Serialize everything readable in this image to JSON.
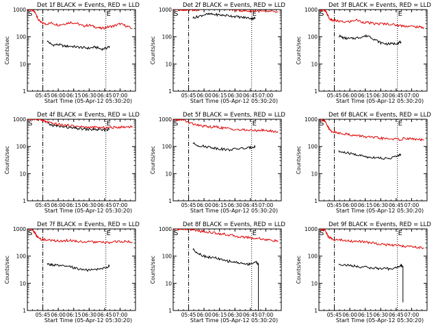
{
  "chart_data": [
    {
      "type": "line",
      "title": "Det 1f BLACK = Events, RED = LLD",
      "xlabel": "Start Time (05-Apr-12 05:30:20)",
      "ylabel": "Counts/sec",
      "yscale": "log",
      "ylim": [
        1,
        1000
      ],
      "yticks": [
        "1",
        "10",
        "100",
        "1000"
      ],
      "xlim": [
        5.5,
        7.25
      ],
      "xticks": [
        "05:45",
        "06:00",
        "06:15",
        "06:30",
        "06:45",
        "07:00"
      ],
      "markers": {
        "start": "S",
        "end": "E",
        "dashdot_x": 5.75,
        "dotted_x": 6.77
      },
      "legend": "none",
      "grid": false,
      "series": [
        {
          "color": "#e00000",
          "x": [
            5.51,
            5.56,
            5.6,
            5.64,
            5.67,
            5.72,
            5.8,
            5.9,
            6.0,
            6.1,
            6.2,
            6.3,
            6.4,
            6.5,
            6.6,
            6.7,
            6.8,
            6.9,
            7.0,
            7.1,
            7.2
          ],
          "y": [
            1000,
            1000,
            900,
            700,
            450,
            330,
            300,
            320,
            270,
            300,
            340,
            310,
            250,
            270,
            230,
            200,
            230,
            250,
            300,
            250,
            200
          ]
        },
        {
          "color": "#000000",
          "x": [
            5.82,
            5.9,
            6.0,
            6.1,
            6.2,
            6.3,
            6.4,
            6.5,
            6.6,
            6.7,
            6.78,
            6.83
          ],
          "y": [
            70,
            50,
            52,
            45,
            45,
            42,
            40,
            38,
            42,
            35,
            38,
            45
          ]
        }
      ]
    },
    {
      "type": "line",
      "title": "Det 2f BLACK = Events, RED = LLD",
      "xlabel": "Start Time (05-Apr-12 05:30:20)",
      "ylabel": "Counts/sec",
      "yscale": "log",
      "ylim": [
        1,
        1000
      ],
      "yticks": [
        "1",
        "10",
        "100",
        "1000"
      ],
      "xlim": [
        5.5,
        7.25
      ],
      "xticks": [
        "05:45",
        "06:00",
        "06:15",
        "06:30",
        "06:45",
        "07:00"
      ],
      "markers": {
        "start": "S",
        "end": "E",
        "dashdot_x": 5.75,
        "dotted_x": 6.77
      },
      "legend": "none",
      "grid": false,
      "series": [
        {
          "color": "#e00000",
          "x": [
            5.51,
            5.6,
            5.66,
            5.7,
            5.75,
            5.85,
            5.95,
            6.05,
            6.15,
            6.25,
            6.35,
            6.45,
            6.55,
            6.65,
            6.75,
            6.85,
            6.95,
            7.05,
            7.2
          ],
          "y": [
            1000,
            1000,
            1000,
            1000,
            1000,
            950,
            1050,
            1100,
            1150,
            1200,
            1100,
            1000,
            950,
            900,
            880,
            900,
            850,
            850,
            800
          ]
        },
        {
          "color": "#000000",
          "x": [
            5.82,
            5.9,
            6.0,
            6.1,
            6.2,
            6.3,
            6.4,
            6.5,
            6.6,
            6.7,
            6.78,
            6.83
          ],
          "y": [
            500,
            550,
            650,
            680,
            650,
            620,
            600,
            560,
            520,
            500,
            470,
            500
          ]
        }
      ]
    },
    {
      "type": "line",
      "title": "Det 3f BLACK = Events, RED = LLD",
      "xlabel": "Start Time (05-Apr-12 05:30:20)",
      "ylabel": "Counts/sec",
      "yscale": "log",
      "ylim": [
        1,
        1000
      ],
      "yticks": [
        "1",
        "10",
        "100",
        "1000"
      ],
      "xlim": [
        5.5,
        7.25
      ],
      "xticks": [
        "05:45",
        "06:00",
        "06:15",
        "06:30",
        "06:45",
        "07:00"
      ],
      "markers": {
        "start": "S",
        "end": "E",
        "dashdot_x": 5.75,
        "dotted_x": 6.77
      },
      "legend": "none",
      "grid": false,
      "series": [
        {
          "color": "#e00000",
          "x": [
            5.51,
            5.56,
            5.6,
            5.64,
            5.67,
            5.72,
            5.8,
            5.9,
            6.0,
            6.1,
            6.2,
            6.3,
            6.4,
            6.5,
            6.6,
            6.7,
            6.8,
            6.9,
            7.0,
            7.1,
            7.2
          ],
          "y": [
            1000,
            1000,
            900,
            650,
            450,
            400,
            380,
            350,
            360,
            420,
            350,
            330,
            300,
            300,
            300,
            280,
            260,
            250,
            240,
            230,
            220
          ]
        },
        {
          "color": "#000000",
          "x": [
            5.82,
            5.9,
            6.0,
            6.1,
            6.2,
            6.3,
            6.4,
            6.5,
            6.6,
            6.7,
            6.78,
            6.83
          ],
          "y": [
            110,
            90,
            85,
            90,
            100,
            110,
            80,
            60,
            55,
            55,
            60,
            65
          ]
        }
      ]
    },
    {
      "type": "line",
      "title": "Det 4f BLACK = Events, RED = LLD",
      "xlabel": "Start Time (05-Apr-12 05:30:20)",
      "ylabel": "Counts/sec",
      "yscale": "log",
      "ylim": [
        1,
        1000
      ],
      "yticks": [
        "1",
        "10",
        "100",
        "1000"
      ],
      "xlim": [
        5.5,
        7.25
      ],
      "xticks": [
        "05:45",
        "06:00",
        "06:15",
        "06:30",
        "06:45",
        "07:00"
      ],
      "markers": {
        "start": "S",
        "end": "E",
        "dashdot_x": 5.75,
        "dotted_x": 6.77
      },
      "legend": "none",
      "grid": false,
      "series": [
        {
          "color": "#e00000",
          "x": [
            5.51,
            5.6,
            5.65,
            5.7,
            5.75,
            5.8,
            5.9,
            6.0,
            6.1,
            6.2,
            6.3,
            6.4,
            6.5,
            6.6,
            6.7,
            6.8,
            6.9,
            7.0,
            7.1,
            7.2
          ],
          "y": [
            1000,
            1000,
            1000,
            1000,
            900,
            800,
            700,
            650,
            600,
            580,
            550,
            520,
            500,
            500,
            480,
            500,
            500,
            520,
            520,
            550
          ]
        },
        {
          "color": "#000000",
          "x": [
            5.82,
            5.9,
            6.0,
            6.1,
            6.2,
            6.3,
            6.4,
            6.5,
            6.6,
            6.7,
            6.78,
            6.83
          ],
          "y": [
            700,
            600,
            550,
            520,
            480,
            460,
            440,
            420,
            420,
            400,
            410,
            430
          ]
        }
      ]
    },
    {
      "type": "line",
      "title": "Det 5f BLACK = Events, RED = LLD",
      "xlabel": "Start Time (05-Apr-12 05:30:20)",
      "ylabel": "Counts/sec",
      "yscale": "log",
      "ylim": [
        1,
        1000
      ],
      "yticks": [
        "1",
        "10",
        "100",
        "1000"
      ],
      "xlim": [
        5.5,
        7.25
      ],
      "xticks": [
        "05:45",
        "06:00",
        "06:15",
        "06:30",
        "06:45",
        "07:00"
      ],
      "markers": {
        "start": "S",
        "end": "E",
        "dashdot_x": 5.75,
        "dotted_x": 6.77
      },
      "legend": "none",
      "grid": false,
      "series": [
        {
          "color": "#e00000",
          "x": [
            5.51,
            5.56,
            5.6,
            5.64,
            5.67,
            5.72,
            5.8,
            5.9,
            6.0,
            6.1,
            6.2,
            6.3,
            6.4,
            6.5,
            6.6,
            6.7,
            6.8,
            6.9,
            7.0,
            7.1,
            7.2
          ],
          "y": [
            1000,
            1000,
            1000,
            1000,
            1000,
            800,
            700,
            600,
            550,
            520,
            520,
            480,
            450,
            430,
            400,
            400,
            380,
            400,
            380,
            370,
            330
          ]
        },
        {
          "color": "#000000",
          "x": [
            5.82,
            5.9,
            6.0,
            6.1,
            6.2,
            6.3,
            6.4,
            6.5,
            6.6,
            6.7,
            6.78,
            6.83
          ],
          "y": [
            130,
            110,
            100,
            95,
            85,
            80,
            75,
            80,
            85,
            85,
            95,
            100
          ]
        }
      ]
    },
    {
      "type": "line",
      "title": "Det 6f BLACK = Events, RED = LLD",
      "xlabel": "Start Time (05-Apr-12 05:30:20)",
      "ylabel": "Counts/sec",
      "yscale": "log",
      "ylim": [
        1,
        1000
      ],
      "yticks": [
        "1",
        "10",
        "100",
        "1000"
      ],
      "xlim": [
        5.5,
        7.25
      ],
      "xticks": [
        "05:45",
        "06:00",
        "06:15",
        "06:30",
        "06:45",
        "07:00"
      ],
      "markers": {
        "start": "S",
        "end": "E",
        "dashdot_x": 5.75,
        "dotted_x": 6.77
      },
      "legend": "none",
      "grid": false,
      "series": [
        {
          "color": "#e00000",
          "x": [
            5.51,
            5.56,
            5.6,
            5.64,
            5.67,
            5.72,
            5.8,
            5.9,
            6.0,
            6.1,
            6.2,
            6.3,
            6.4,
            6.5,
            6.6,
            6.7,
            6.8,
            6.9,
            7.0,
            7.1,
            7.2
          ],
          "y": [
            1000,
            1000,
            800,
            550,
            420,
            350,
            320,
            300,
            270,
            250,
            240,
            220,
            210,
            200,
            190,
            190,
            180,
            200,
            190,
            180,
            170
          ]
        },
        {
          "color": "#000000",
          "x": [
            5.82,
            5.9,
            6.0,
            6.1,
            6.2,
            6.3,
            6.4,
            6.5,
            6.6,
            6.7,
            6.78,
            6.83
          ],
          "y": [
            65,
            60,
            55,
            50,
            45,
            40,
            40,
            38,
            35,
            40,
            45,
            50
          ]
        }
      ]
    },
    {
      "type": "line",
      "title": "Det 7f BLACK = Events, RED = LLD",
      "xlabel": "Start Time (05-Apr-12 05:30:20)",
      "ylabel": "Counts/sec",
      "yscale": "log",
      "ylim": [
        1,
        1000
      ],
      "yticks": [
        "1",
        "10",
        "100",
        "1000"
      ],
      "xlim": [
        5.5,
        7.25
      ],
      "xticks": [
        "05:45",
        "06:00",
        "06:15",
        "06:30",
        "06:45",
        "07:00"
      ],
      "markers": {
        "start": "S",
        "end": "E",
        "dashdot_x": 5.75,
        "dotted_x": 6.77
      },
      "legend": "none",
      "grid": false,
      "series": [
        {
          "color": "#e00000",
          "x": [
            5.51,
            5.56,
            5.6,
            5.64,
            5.67,
            5.72,
            5.8,
            5.9,
            6.0,
            6.1,
            6.2,
            6.3,
            6.4,
            6.5,
            6.6,
            6.7,
            6.8,
            6.9,
            7.0,
            7.1,
            7.2
          ],
          "y": [
            1000,
            1000,
            850,
            600,
            480,
            420,
            400,
            380,
            360,
            370,
            380,
            350,
            340,
            330,
            330,
            320,
            310,
            330,
            350,
            340,
            330
          ]
        },
        {
          "color": "#000000",
          "x": [
            5.82,
            5.9,
            6.0,
            6.1,
            6.2,
            6.3,
            6.4,
            6.5,
            6.6,
            6.7,
            6.78,
            6.83
          ],
          "y": [
            50,
            48,
            45,
            42,
            40,
            35,
            32,
            30,
            32,
            35,
            38,
            45
          ]
        }
      ]
    },
    {
      "type": "line",
      "title": "Det 8f BLACK = Events, RED = LLD",
      "xlabel": "Start Time (05-Apr-12 05:30:20)",
      "ylabel": "Counts/sec",
      "yscale": "log",
      "ylim": [
        1,
        1000
      ],
      "yticks": [
        "1",
        "10",
        "100",
        "1000"
      ],
      "xlim": [
        5.5,
        7.25
      ],
      "xticks": [
        "05:45",
        "06:00",
        "06:15",
        "06:30",
        "06:45",
        "07:00"
      ],
      "markers": {
        "start": "S",
        "end": "E",
        "dashdot_x": 5.75,
        "dotted_x": 6.77
      },
      "legend": "none",
      "grid": false,
      "series": [
        {
          "color": "#e00000",
          "x": [
            5.51,
            5.56,
            5.6,
            5.64,
            5.67,
            5.72,
            5.8,
            5.9,
            6.0,
            6.1,
            6.2,
            6.3,
            6.4,
            6.5,
            6.6,
            6.7,
            6.8,
            6.9,
            7.0,
            7.1,
            7.2
          ],
          "y": [
            1000,
            1000,
            1000,
            1000,
            1000,
            1000,
            950,
            850,
            800,
            750,
            700,
            650,
            600,
            550,
            500,
            500,
            450,
            450,
            400,
            380,
            350
          ]
        },
        {
          "color": "#000000",
          "x": [
            5.82,
            5.9,
            6.0,
            6.1,
            6.2,
            6.3,
            6.4,
            6.5,
            6.6,
            6.7,
            6.78,
            6.85,
            6.88,
            6.88
          ],
          "y": [
            180,
            130,
            100,
            90,
            85,
            70,
            65,
            60,
            55,
            50,
            55,
            60,
            50,
            1
          ]
        }
      ]
    },
    {
      "type": "line",
      "title": "Det 9f BLACK = Events, RED = LLD",
      "xlabel": "Start Time (05-Apr-12 05:30:20)",
      "ylabel": "Counts/sec",
      "yscale": "log",
      "ylim": [
        1,
        1000
      ],
      "yticks": [
        "1",
        "10",
        "100",
        "1000"
      ],
      "xlim": [
        5.5,
        7.25
      ],
      "xticks": [
        "05:45",
        "06:00",
        "06:15",
        "06:30",
        "06:45",
        "07:00"
      ],
      "markers": {
        "start": "S",
        "end": "E",
        "dashdot_x": 5.75,
        "dotted_x": 6.77
      },
      "legend": "none",
      "grid": false,
      "series": [
        {
          "color": "#e00000",
          "x": [
            5.51,
            5.56,
            5.6,
            5.64,
            5.67,
            5.72,
            5.8,
            5.9,
            6.0,
            6.1,
            6.2,
            6.3,
            6.4,
            6.5,
            6.6,
            6.7,
            6.8,
            6.9,
            7.0,
            7.1,
            7.2
          ],
          "y": [
            1000,
            1000,
            850,
            600,
            480,
            420,
            400,
            380,
            360,
            350,
            340,
            320,
            300,
            280,
            260,
            250,
            240,
            230,
            220,
            210,
            200
          ]
        },
        {
          "color": "#000000",
          "x": [
            5.82,
            5.9,
            6.0,
            6.1,
            6.2,
            6.3,
            6.4,
            6.5,
            6.6,
            6.7,
            6.78,
            6.83,
            6.86,
            6.86
          ],
          "y": [
            50,
            48,
            45,
            42,
            40,
            38,
            36,
            35,
            34,
            35,
            40,
            45,
            42,
            2
          ]
        }
      ]
    }
  ]
}
